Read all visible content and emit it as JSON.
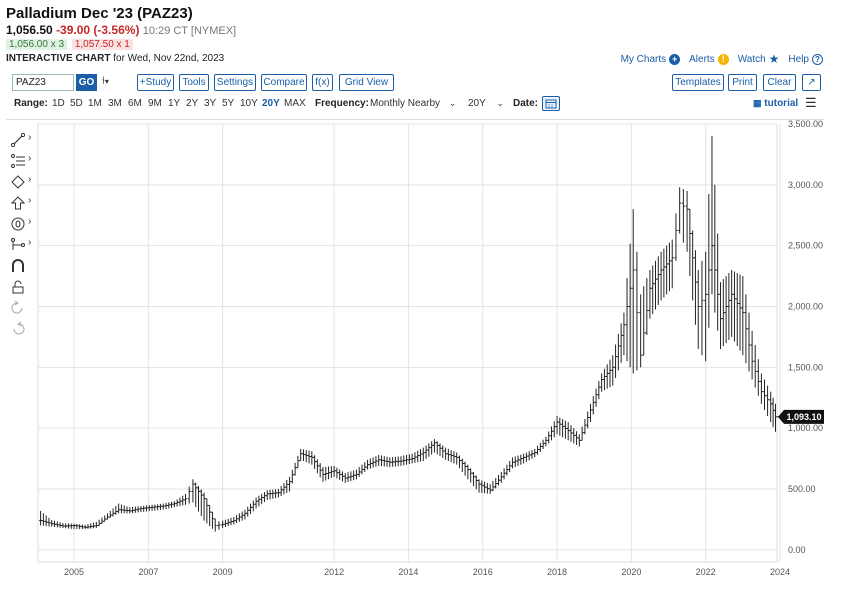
{
  "header": {
    "title": "Palladium Dec '23 (PAZ23)",
    "last": "1,056.50",
    "change": "-39.00 (-3.56%)",
    "time": "10:29 CT [NYMEX]",
    "bid": "1,056.00 x 3",
    "ask": "1,057.50 x 1",
    "subtitle_strong": "INTERACTIVE CHART",
    "subtitle_rest": "for Wed, Nov 22nd, 2023"
  },
  "links": {
    "my_charts": "My Charts",
    "alerts": "Alerts",
    "watch": "Watch",
    "help": "Help"
  },
  "toolbar": {
    "symbol": "PAZ23",
    "go": "GO",
    "study": "+Study",
    "tools": "Tools",
    "settings": "Settings",
    "compare": "Compare",
    "fx": "f(x)",
    "grid_view": "Grid View",
    "templates": "Templates",
    "print": "Print",
    "clear": "Clear"
  },
  "rangebar": {
    "range_label": "Range:",
    "ranges": [
      "1D",
      "5D",
      "1M",
      "3M",
      "6M",
      "9M",
      "1Y",
      "2Y",
      "3Y",
      "5Y",
      "10Y",
      "20Y",
      "MAX"
    ],
    "active_range": "20Y",
    "frequency_label": "Frequency:",
    "frequency_value": "Monthly Nearby",
    "period_value": "20Y",
    "date_label": "Date:",
    "tutorial": "tutorial"
  },
  "icons": {
    "left_tools": [
      "line-tool-icon",
      "fib-tool-icon",
      "shape-tool-icon",
      "arrow-tool-icon",
      "text-tool-icon",
      "measure-tool-icon",
      "magnet-icon",
      "lock-icon",
      "undo-icon",
      "redo-icon"
    ]
  },
  "colors": {
    "bar": "#222222",
    "price_tag": "#111111",
    "link": "#1a5ea8",
    "down": "#c62828",
    "up": "#2e7d32"
  },
  "chart_data": {
    "type": "ohlc",
    "title": "",
    "xlabel": "",
    "ylabel": "",
    "ylim": [
      -100,
      3500
    ],
    "y_ticks": [
      "0.00",
      "500.00",
      "1,000.00",
      "1,500.00",
      "2,000.00",
      "2,500.00",
      "3,000.00",
      "3,500.00"
    ],
    "x_ticks": [
      "2005",
      "2007",
      "2009",
      "2012",
      "2014",
      "2016",
      "2018",
      "2020",
      "2022",
      "2024"
    ],
    "last_price_label": "1,093.10",
    "last_price": 1093.1,
    "x_range": [
      2004.03,
      2023.92
    ],
    "series": [
      {
        "x": [
          2004.1,
          2004.4,
          2004.7,
          2005.0,
          2005.3,
          2005.6,
          2005.9,
          2006.2,
          2006.5,
          2006.8,
          2007.1,
          2007.4,
          2007.7,
          2008.0,
          2008.2,
          2008.5,
          2008.8,
          2009.0,
          2009.3,
          2009.6,
          2009.9,
          2010.2,
          2010.5,
          2010.8,
          2011.1,
          2011.4,
          2011.7,
          2012.0,
          2012.3,
          2012.6,
          2012.9,
          2013.2,
          2013.5,
          2013.8,
          2014.1,
          2014.4,
          2014.7,
          2015.0,
          2015.3,
          2015.6,
          2015.9,
          2016.2,
          2016.5,
          2016.8,
          2017.1,
          2017.4,
          2017.7,
          2018.0,
          2018.3,
          2018.6,
          2018.9,
          2019.2,
          2019.5,
          2019.8,
          2020.05,
          2020.25,
          2020.5,
          2020.8,
          2021.1,
          2021.3,
          2021.5,
          2021.8,
          2022.0,
          2022.17,
          2022.4,
          2022.7,
          2023.0,
          2023.25,
          2023.5,
          2023.75,
          2023.88
        ],
        "close": [
          240,
          215,
          195,
          200,
          185,
          200,
          270,
          330,
          320,
          340,
          350,
          360,
          380,
          420,
          540,
          420,
          200,
          210,
          240,
          300,
          400,
          460,
          470,
          560,
          790,
          760,
          620,
          650,
          590,
          620,
          700,
          740,
          720,
          730,
          750,
          800,
          880,
          790,
          760,
          660,
          540,
          490,
          600,
          720,
          760,
          800,
          900,
          1050,
          980,
          900,
          1150,
          1400,
          1500,
          1850,
          2300,
          1600,
          2150,
          2300,
          2400,
          2850,
          2800,
          2000,
          2100,
          2500,
          1900,
          2100,
          1950,
          1550,
          1300,
          1200,
          1093
        ],
        "high": [
          320,
          245,
          220,
          215,
          205,
          230,
          300,
          380,
          350,
          360,
          370,
          380,
          400,
          460,
          580,
          470,
          230,
          240,
          270,
          330,
          430,
          490,
          500,
          600,
          830,
          810,
          680,
          690,
          630,
          660,
          740,
          780,
          760,
          770,
          790,
          840,
          910,
          840,
          800,
          700,
          580,
          540,
          640,
          760,
          790,
          830,
          930,
          1100,
          1050,
          950,
          1200,
          1450,
          1600,
          1950,
          2800,
          2100,
          2300,
          2450,
          2550,
          2980,
          2950,
          2300,
          2450,
          3400,
          2200,
          2300,
          2250,
          1800,
          1450,
          1300,
          1200
        ],
        "low": [
          200,
          190,
          180,
          170,
          170,
          180,
          250,
          300,
          300,
          310,
          320,
          330,
          350,
          370,
          390,
          240,
          150,
          180,
          210,
          250,
          340,
          410,
          430,
          480,
          740,
          700,
          560,
          600,
          550,
          580,
          660,
          690,
          680,
          690,
          710,
          730,
          800,
          740,
          700,
          580,
          470,
          460,
          550,
          670,
          710,
          760,
          850,
          950,
          900,
          850,
          1050,
          1300,
          1350,
          1600,
          1450,
          1500,
          1900,
          2050,
          2150,
          2600,
          2450,
          1650,
          1550,
          2100,
          1650,
          1750,
          1600,
          1400,
          1200,
          1050,
          970
        ]
      }
    ]
  }
}
